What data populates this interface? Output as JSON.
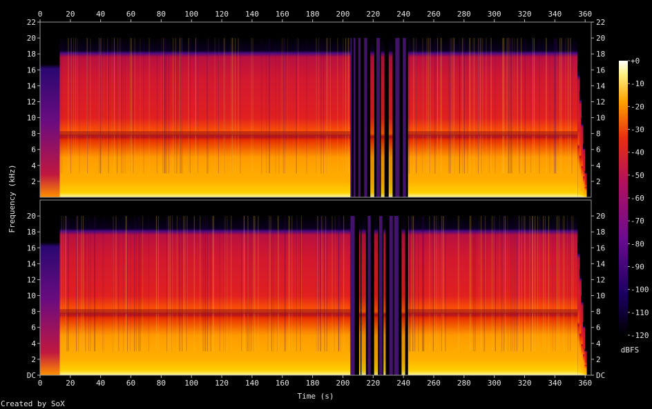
{
  "chart_data": {
    "type": "heatmap",
    "xlabel": "Time (s)",
    "ylabel": "Frequency (kHz)",
    "x_ticks": [
      "0",
      "20",
      "40",
      "60",
      "80",
      "100",
      "120",
      "140",
      "160",
      "180",
      "200",
      "220",
      "240",
      "260",
      "280",
      "300",
      "320",
      "340",
      "360"
    ],
    "xlim": [
      0,
      364
    ],
    "channels": [
      {
        "y_ticks": [
          "2",
          "4",
          "6",
          "8",
          "10",
          "12",
          "14",
          "16",
          "18",
          "20",
          "22"
        ]
      },
      {
        "y_ticks": [
          "DC",
          "2",
          "4",
          "6",
          "8",
          "10",
          "12",
          "14",
          "16",
          "18",
          "20"
        ]
      }
    ],
    "ylim_khz": [
      0,
      22
    ],
    "colorbar": {
      "label": "dBFS",
      "ticks": [
        "+0",
        "-10",
        "-20",
        "-30",
        "-40",
        "-50",
        "-60",
        "-70",
        "-80",
        "-90",
        "-100",
        "-110",
        "-120"
      ],
      "range": [
        -120,
        0
      ]
    },
    "segments_s": [
      {
        "start": 0,
        "end": 13,
        "level": "low",
        "cutoff_khz": 19
      },
      {
        "start": 13,
        "end": 205,
        "level": "high",
        "cutoff_khz": 20
      },
      {
        "start": 205,
        "end": 243,
        "level": "gappy",
        "cutoff_khz": 20
      },
      {
        "start": 243,
        "end": 355,
        "level": "high",
        "cutoff_khz": 20
      },
      {
        "start": 355,
        "end": 362,
        "level": "fade",
        "cutoff_khz": 20
      }
    ],
    "footer": "Created by SoX"
  }
}
